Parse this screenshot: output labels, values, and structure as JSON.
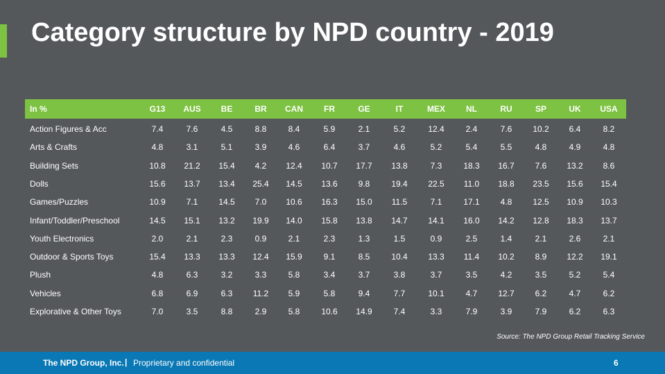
{
  "header": {
    "title": "Category structure by NPD country - 2019"
  },
  "table": {
    "columns": [
      "In %",
      "G13",
      "AUS",
      "BE",
      "BR",
      "CAN",
      "FR",
      "GE",
      "IT",
      "MEX",
      "NL",
      "RU",
      "SP",
      "UK",
      "USA"
    ],
    "rows": [
      [
        "Action Figures & Acc",
        "7.4",
        "7.6",
        "4.5",
        "8.8",
        "8.4",
        "5.9",
        "2.1",
        "5.2",
        "12.4",
        "2.4",
        "7.6",
        "10.2",
        "6.4",
        "8.2"
      ],
      [
        "Arts & Crafts",
        "4.8",
        "3.1",
        "5.1",
        "3.9",
        "4.6",
        "6.4",
        "3.7",
        "4.6",
        "5.2",
        "5.4",
        "5.5",
        "4.8",
        "4.9",
        "4.8"
      ],
      [
        "Building Sets",
        "10.8",
        "21.2",
        "15.4",
        "4.2",
        "12.4",
        "10.7",
        "17.7",
        "13.8",
        "7.3",
        "18.3",
        "16.7",
        "7.6",
        "13.2",
        "8.6"
      ],
      [
        "Dolls",
        "15.6",
        "13.7",
        "13.4",
        "25.4",
        "14.5",
        "13.6",
        "9.8",
        "19.4",
        "22.5",
        "11.0",
        "18.8",
        "23.5",
        "15.6",
        "15.4"
      ],
      [
        "Games/Puzzles",
        "10.9",
        "7.1",
        "14.5",
        "7.0",
        "10.6",
        "16.3",
        "15.0",
        "11.5",
        "7.1",
        "17.1",
        "4.8",
        "12.5",
        "10.9",
        "10.3"
      ],
      [
        "Infant/Toddler/Preschool",
        "14.5",
        "15.1",
        "13.2",
        "19.9",
        "14.0",
        "15.8",
        "13.8",
        "14.7",
        "14.1",
        "16.0",
        "14.2",
        "12.8",
        "18.3",
        "13.7"
      ],
      [
        "Youth Electronics",
        "2.0",
        "2.1",
        "2.3",
        "0.9",
        "2.1",
        "2.3",
        "1.3",
        "1.5",
        "0.9",
        "2.5",
        "1.4",
        "2.1",
        "2.6",
        "2.1"
      ],
      [
        "Outdoor & Sports Toys",
        "15.4",
        "13.3",
        "13.3",
        "12.4",
        "15.9",
        "9.1",
        "8.5",
        "10.4",
        "13.3",
        "11.4",
        "10.2",
        "8.9",
        "12.2",
        "19.1"
      ],
      [
        "Plush",
        "4.8",
        "6.3",
        "3.2",
        "3.3",
        "5.8",
        "3.4",
        "3.7",
        "3.8",
        "3.7",
        "3.5",
        "4.2",
        "3.5",
        "5.2",
        "5.4"
      ],
      [
        "Vehicles",
        "6.8",
        "6.9",
        "6.3",
        "11.2",
        "5.9",
        "5.8",
        "9.4",
        "7.7",
        "10.1",
        "4.7",
        "12.7",
        "6.2",
        "4.7",
        "6.2"
      ],
      [
        "Explorative & Other Toys",
        "7.0",
        "3.5",
        "8.8",
        "2.9",
        "5.8",
        "10.6",
        "14.9",
        "7.4",
        "3.3",
        "7.9",
        "3.9",
        "7.9",
        "6.2",
        "6.3"
      ]
    ]
  },
  "source": "Source: The NPD Group  Retail Tracking Service",
  "footer": {
    "company": "The NPD Group, Inc.",
    "separator": "|",
    "note": "Proprietary and confidential",
    "page": "6"
  }
}
